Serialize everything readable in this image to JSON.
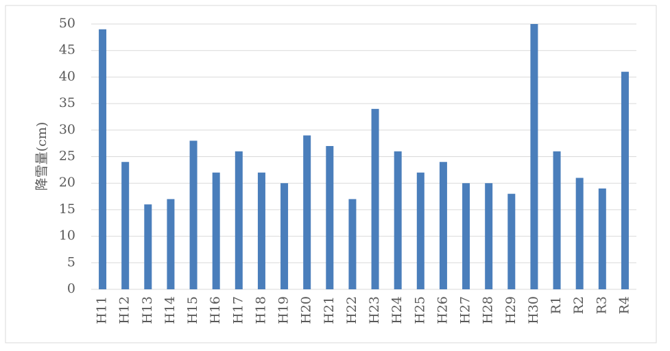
{
  "chart_data": {
    "type": "bar",
    "y_label": "降雪量(cm)",
    "categories": [
      "H11",
      "H12",
      "H13",
      "H14",
      "H15",
      "H16",
      "H17",
      "H18",
      "H19",
      "H20",
      "H21",
      "H22",
      "H23",
      "H24",
      "H25",
      "H26",
      "H27",
      "H28",
      "H29",
      "H30",
      "R1",
      "R2",
      "R3",
      "R4"
    ],
    "values": [
      49,
      24,
      16,
      17,
      28,
      22,
      26,
      22,
      20,
      29,
      27,
      17,
      34,
      26,
      22,
      24,
      20,
      20,
      18,
      50,
      26,
      21,
      19,
      41
    ],
    "color": "#4a7ebb",
    "ylim": [
      0,
      50
    ],
    "yticks": [
      0,
      5,
      10,
      15,
      20,
      25,
      30,
      35,
      40,
      45,
      50
    ],
    "grid": true
  }
}
